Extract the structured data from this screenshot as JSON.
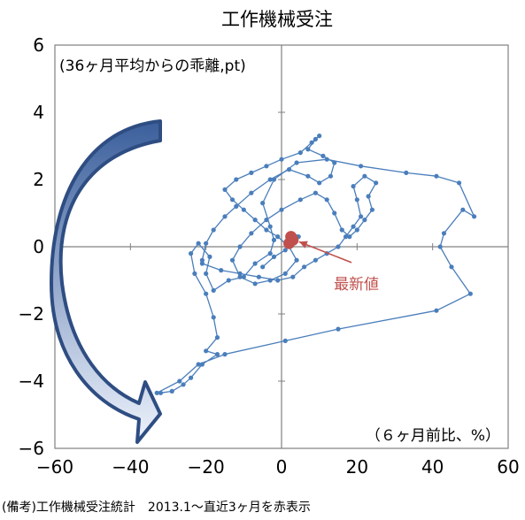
{
  "chart_data": {
    "type": "scatter",
    "title": "工作機械受注",
    "xlabel": "（６ヶ月前比、%）",
    "ylabel": "(36ヶ月平均からの乖離,pt)",
    "xlim": [
      -60,
      60
    ],
    "ylim": [
      -6,
      6
    ],
    "x_ticks": [
      -60,
      -40,
      -20,
      0,
      20,
      40,
      60
    ],
    "y_ticks": [
      -6,
      -4,
      -2,
      0,
      2,
      4,
      6
    ],
    "grid": false,
    "series": [
      {
        "points": [
          [
            -33,
            -4.35
          ],
          [
            -27,
            -4.0
          ],
          [
            -22,
            -3.5
          ],
          [
            -15,
            -3.2
          ],
          [
            1,
            -2.8
          ],
          [
            15,
            -2.45
          ],
          [
            41,
            -1.9
          ],
          [
            50,
            -1.4
          ],
          [
            45,
            -0.6
          ],
          [
            42,
            0.0
          ],
          [
            43,
            0.4
          ],
          [
            48,
            1.1
          ],
          [
            51,
            0.9
          ],
          [
            47,
            1.9
          ],
          [
            41,
            2.1
          ],
          [
            33,
            2.2
          ],
          [
            21,
            2.4
          ],
          [
            12,
            2.6
          ],
          [
            4,
            2.5
          ],
          [
            -2,
            2.0
          ],
          [
            -5,
            1.3
          ],
          [
            -3,
            0.6
          ],
          [
            -2,
            0.2
          ],
          [
            -3,
            -0.2
          ],
          [
            -7,
            -0.5
          ],
          [
            -10,
            -0.9
          ],
          [
            -14,
            -1.0
          ],
          [
            -18,
            -1.3
          ],
          [
            -20,
            -0.8
          ],
          [
            -19,
            -0.3
          ],
          [
            -22,
            0.1
          ],
          [
            -24,
            -0.2
          ],
          [
            -23,
            -0.8
          ],
          [
            -20,
            -1.4
          ],
          [
            -18,
            -2.1
          ],
          [
            -17,
            -2.7
          ],
          [
            -20,
            -3.1
          ],
          [
            -17,
            -3.2
          ],
          [
            -21,
            -3.5
          ],
          [
            -24,
            -3.9
          ],
          [
            -26,
            -4.1
          ],
          [
            -29,
            -4.3
          ],
          [
            -32,
            -4.35
          ]
        ]
      },
      {
        "points": [
          [
            -21,
            -0.5
          ],
          [
            -16,
            -0.7
          ],
          [
            -11,
            -0.8
          ],
          [
            -6,
            -0.9
          ],
          [
            -1,
            -1.0
          ],
          [
            3,
            -0.9
          ],
          [
            6,
            -0.6
          ],
          [
            9,
            -0.4
          ],
          [
            12,
            -0.2
          ],
          [
            15,
            0.0
          ],
          [
            17,
            0.3
          ],
          [
            19,
            0.6
          ],
          [
            21,
            0.9
          ],
          [
            20,
            1.4
          ],
          [
            19,
            1.8
          ],
          [
            22,
            2.1
          ],
          [
            25,
            1.9
          ],
          [
            23,
            1.5
          ],
          [
            24,
            1.1
          ],
          [
            22,
            0.8
          ],
          [
            20,
            0.5
          ],
          [
            18,
            0.3
          ],
          [
            16,
            0.5
          ],
          [
            14,
            1.0
          ],
          [
            12,
            1.4
          ],
          [
            9,
            1.6
          ],
          [
            5,
            1.4
          ],
          [
            0,
            1.1
          ],
          [
            -4,
            0.8
          ],
          [
            -8,
            0.4
          ],
          [
            -11,
            0.0
          ],
          [
            -13,
            -0.4
          ],
          [
            -11,
            -0.9
          ],
          [
            -7,
            -1.1
          ],
          [
            -3,
            -1.0
          ],
          [
            1,
            -0.8
          ],
          [
            4,
            -0.4
          ],
          [
            2,
            0.0
          ],
          [
            -1,
            0.3
          ],
          [
            -4,
            0.5
          ],
          [
            -7,
            0.8
          ],
          [
            -10,
            1.1
          ],
          [
            -13,
            1.4
          ],
          [
            -15,
            1.7
          ],
          [
            -12,
            2.0
          ],
          [
            -8,
            2.2
          ],
          [
            -4,
            2.4
          ],
          [
            0,
            2.6
          ],
          [
            5,
            2.8
          ],
          [
            8,
            3.1
          ],
          [
            10,
            3.3
          ],
          [
            9,
            3.2
          ],
          [
            7,
            2.9
          ],
          [
            11,
            2.7
          ],
          [
            14,
            2.5
          ],
          [
            13,
            2.1
          ],
          [
            10,
            1.9
          ],
          [
            7,
            2.1
          ],
          [
            2,
            2.3
          ],
          [
            -3,
            2.0
          ],
          [
            -8,
            1.6
          ],
          [
            -12,
            1.2
          ],
          [
            -15,
            0.9
          ],
          [
            -18,
            0.5
          ],
          [
            -20,
            0.1
          ],
          [
            -21,
            -0.4
          ]
        ]
      },
      {
        "points": [
          [
            -5,
            -0.6
          ],
          [
            -2,
            -0.3
          ],
          [
            1,
            -0.1
          ],
          [
            3,
            0.1
          ],
          [
            4,
            0.3
          ],
          [
            4.5,
            0.3
          ],
          [
            3,
            0.2
          ],
          [
            2.5,
            0.3
          ],
          [
            2,
            0.1
          ]
        ]
      }
    ],
    "recent_points": [
      [
        2,
        0.1
      ],
      [
        2.5,
        0.3
      ],
      [
        3,
        0.2
      ]
    ],
    "annotation": {
      "text": "最新値",
      "x": 19,
      "y": -1.05,
      "target": [
        3,
        0.2
      ]
    },
    "colors": {
      "line": "#4a7ebb",
      "recent": "#c0504d",
      "annotation_text": "#c0504d",
      "arrow_fill_top": "#3b5f9c",
      "arrow_fill_bottom": "#e8eefa",
      "arrow_stroke": "#2e4d82",
      "axis": "#808080"
    }
  },
  "source_note": "(備考)工作機械受注統計　2013.1～直近3ヶ月を赤表示"
}
